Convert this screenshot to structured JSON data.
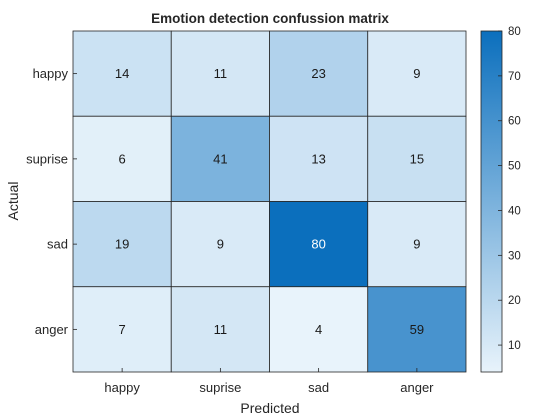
{
  "chart_data": {
    "type": "heatmap",
    "title": "Emotion detection confussion matrix",
    "xlabel": "Predicted",
    "ylabel": "Actual",
    "x_categories": [
      "happy",
      "suprise",
      "sad",
      "anger"
    ],
    "y_categories": [
      "happy",
      "suprise",
      "sad",
      "anger"
    ],
    "values": [
      [
        14,
        11,
        23,
        9
      ],
      [
        6,
        41,
        13,
        15
      ],
      [
        19,
        9,
        80,
        9
      ],
      [
        7,
        11,
        4,
        59
      ]
    ],
    "colorbar": {
      "range": [
        4,
        80
      ],
      "ticks": [
        "10",
        "20",
        "30",
        "40",
        "50",
        "60",
        "70",
        "80"
      ],
      "tick_values": [
        10,
        20,
        30,
        40,
        50,
        60,
        70,
        80
      ],
      "color_low": "#e8f3fb",
      "color_high": "#0b6fbd"
    },
    "light_text_threshold": 70
  }
}
